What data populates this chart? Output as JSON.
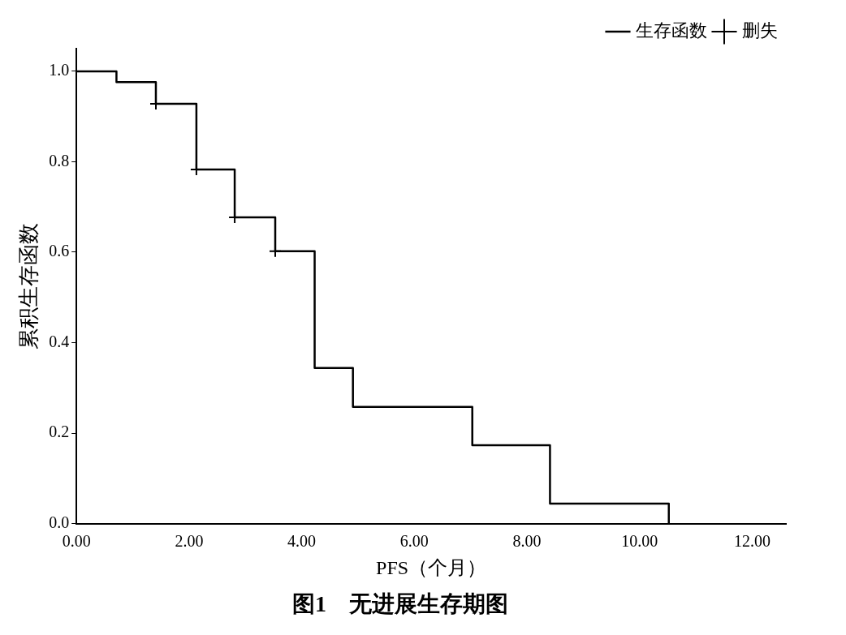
{
  "chart_data": {
    "type": "step",
    "title": "图1　无进展生存期图",
    "xlabel": "PFS（个月）",
    "ylabel": "累积生存函数",
    "xlim": [
      0,
      12.6
    ],
    "ylim": [
      0,
      1.05
    ],
    "xticks": [
      {
        "value": 0,
        "label": "0.00"
      },
      {
        "value": 2,
        "label": "2.00"
      },
      {
        "value": 4,
        "label": "4.00"
      },
      {
        "value": 6,
        "label": "6.00"
      },
      {
        "value": 8,
        "label": "8.00"
      },
      {
        "value": 10,
        "label": "10.00"
      },
      {
        "value": 12,
        "label": "12.00"
      }
    ],
    "yticks": [
      {
        "value": 0,
        "label": "0.0"
      },
      {
        "value": 0.2,
        "label": "0.2"
      },
      {
        "value": 0.4,
        "label": "0.4"
      },
      {
        "value": 0.6,
        "label": "0.6"
      },
      {
        "value": 0.8,
        "label": "0.8"
      },
      {
        "value": 1,
        "label": "1.0"
      }
    ],
    "grid": false,
    "legend": "top right",
    "series": [
      {
        "name": "生存函数",
        "type": "step",
        "color": "#000000",
        "marker": "none",
        "x": [
          0,
          0.71,
          1.41,
          2.13,
          2.81,
          3.53,
          4.23,
          4.91,
          7.03,
          8.41,
          10.52
        ],
        "values": [
          1,
          0.976,
          0.928,
          0.783,
          0.677,
          0.602,
          0.344,
          0.258,
          0.173,
          0.044,
          0
        ]
      },
      {
        "name": "删失",
        "type": "scatter",
        "color": "#000000",
        "marker": "cross",
        "x": [
          1.41,
          2.13,
          2.81,
          3.53
        ],
        "values": [
          0.928,
          0.783,
          0.677,
          0.602
        ]
      }
    ]
  }
}
